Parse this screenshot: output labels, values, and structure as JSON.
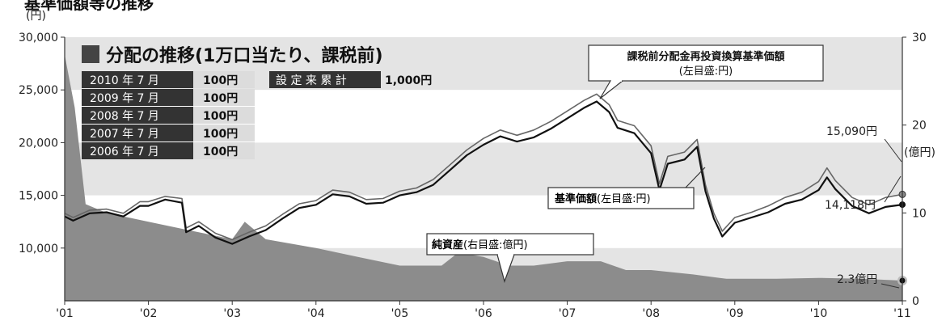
{
  "header": {
    "title": "基準価額等の推移"
  },
  "chart_data": {
    "type": "line",
    "title": "分配の推移(1万口当たり、課税前)",
    "left_axis": {
      "unit": "(円)",
      "ticks": [
        "30,000",
        "25,000",
        "20,000",
        "15,000",
        "10,000"
      ],
      "ylim": [
        5000,
        30000
      ]
    },
    "right_axis": {
      "unit": "(億円)",
      "ticks": [
        "30",
        "20",
        "10",
        "0"
      ],
      "ylim": [
        0,
        30
      ]
    },
    "x_axis": {
      "ticks": [
        "'01",
        "'02",
        "'03",
        "'04",
        "'05",
        "'06",
        "'07",
        "'08",
        "'09",
        "'10",
        "'11"
      ],
      "xlim": [
        2001.0,
        2011.0
      ]
    },
    "distributions": [
      {
        "period": "2010 年 7 月",
        "amount": "100円"
      },
      {
        "period": "2009 年 7 月",
        "amount": "100円"
      },
      {
        "period": "2008 年 7 月",
        "amount": "100円"
      },
      {
        "period": "2007 年 7 月",
        "amount": "100円"
      },
      {
        "period": "2006 年 7 月",
        "amount": "100円"
      }
    ],
    "cumulative": {
      "label": "設 定 来 累 計",
      "amount": "1,000円"
    },
    "series": [
      {
        "name": "課税前分配金再投資換算基準価額",
        "sub": "(左目盛:円)",
        "axis": "left",
        "color": "#666666",
        "points": [
          [
            2001.0,
            13300
          ],
          [
            2001.1,
            12900
          ],
          [
            2001.3,
            13600
          ],
          [
            2001.5,
            13700
          ],
          [
            2001.7,
            13300
          ],
          [
            2001.9,
            14400
          ],
          [
            2002.0,
            14400
          ],
          [
            2002.2,
            14900
          ],
          [
            2002.4,
            14700
          ],
          [
            2002.45,
            11900
          ],
          [
            2002.6,
            12500
          ],
          [
            2002.8,
            11400
          ],
          [
            2003.0,
            10800
          ],
          [
            2003.2,
            11500
          ],
          [
            2003.4,
            12100
          ],
          [
            2003.6,
            13200
          ],
          [
            2003.8,
            14200
          ],
          [
            2004.0,
            14500
          ],
          [
            2004.2,
            15500
          ],
          [
            2004.4,
            15300
          ],
          [
            2004.6,
            14600
          ],
          [
            2004.8,
            14700
          ],
          [
            2005.0,
            15400
          ],
          [
            2005.2,
            15700
          ],
          [
            2005.4,
            16500
          ],
          [
            2005.6,
            17900
          ],
          [
            2005.8,
            19300
          ],
          [
            2006.0,
            20400
          ],
          [
            2006.2,
            21200
          ],
          [
            2006.4,
            20700
          ],
          [
            2006.6,
            21200
          ],
          [
            2006.8,
            22000
          ],
          [
            2007.0,
            23000
          ],
          [
            2007.2,
            24000
          ],
          [
            2007.35,
            24600
          ],
          [
            2007.5,
            23600
          ],
          [
            2007.6,
            22100
          ],
          [
            2007.8,
            21600
          ],
          [
            2008.0,
            19700
          ],
          [
            2008.1,
            16100
          ],
          [
            2008.2,
            18700
          ],
          [
            2008.4,
            19100
          ],
          [
            2008.55,
            20300
          ],
          [
            2008.65,
            16000
          ],
          [
            2008.75,
            13300
          ],
          [
            2008.85,
            11600
          ],
          [
            2009.0,
            12900
          ],
          [
            2009.2,
            13400
          ],
          [
            2009.4,
            14000
          ],
          [
            2009.6,
            14800
          ],
          [
            2009.8,
            15300
          ],
          [
            2010.0,
            16300
          ],
          [
            2010.1,
            17600
          ],
          [
            2010.2,
            16400
          ],
          [
            2010.4,
            14800
          ],
          [
            2010.6,
            14100
          ],
          [
            2010.8,
            14800
          ],
          [
            2011.0,
            15090
          ]
        ]
      },
      {
        "name": "基準価額",
        "sub": "(左目盛:円)",
        "axis": "left",
        "color": "#111111",
        "points": [
          [
            2001.0,
            13000
          ],
          [
            2001.1,
            12600
          ],
          [
            2001.3,
            13300
          ],
          [
            2001.5,
            13400
          ],
          [
            2001.7,
            13000
          ],
          [
            2001.9,
            14000
          ],
          [
            2002.0,
            14000
          ],
          [
            2002.2,
            14600
          ],
          [
            2002.4,
            14300
          ],
          [
            2002.45,
            11500
          ],
          [
            2002.6,
            12100
          ],
          [
            2002.8,
            11000
          ],
          [
            2003.0,
            10400
          ],
          [
            2003.2,
            11100
          ],
          [
            2003.4,
            11700
          ],
          [
            2003.6,
            12800
          ],
          [
            2003.8,
            13800
          ],
          [
            2004.0,
            14100
          ],
          [
            2004.2,
            15100
          ],
          [
            2004.4,
            14900
          ],
          [
            2004.6,
            14200
          ],
          [
            2004.8,
            14300
          ],
          [
            2005.0,
            15000
          ],
          [
            2005.2,
            15300
          ],
          [
            2005.4,
            16000
          ],
          [
            2005.6,
            17400
          ],
          [
            2005.8,
            18800
          ],
          [
            2006.0,
            19800
          ],
          [
            2006.2,
            20600
          ],
          [
            2006.4,
            20100
          ],
          [
            2006.6,
            20500
          ],
          [
            2006.8,
            21300
          ],
          [
            2007.0,
            22300
          ],
          [
            2007.2,
            23300
          ],
          [
            2007.35,
            23900
          ],
          [
            2007.5,
            22900
          ],
          [
            2007.6,
            21400
          ],
          [
            2007.8,
            20900
          ],
          [
            2008.0,
            19000
          ],
          [
            2008.1,
            15500
          ],
          [
            2008.2,
            18000
          ],
          [
            2008.4,
            18400
          ],
          [
            2008.55,
            19600
          ],
          [
            2008.65,
            15400
          ],
          [
            2008.75,
            12800
          ],
          [
            2008.85,
            11100
          ],
          [
            2009.0,
            12400
          ],
          [
            2009.2,
            12900
          ],
          [
            2009.4,
            13400
          ],
          [
            2009.6,
            14200
          ],
          [
            2009.8,
            14600
          ],
          [
            2010.0,
            15500
          ],
          [
            2010.1,
            16700
          ],
          [
            2010.2,
            15600
          ],
          [
            2010.4,
            14000
          ],
          [
            2010.6,
            13300
          ],
          [
            2010.8,
            13900
          ],
          [
            2011.0,
            14118
          ]
        ]
      },
      {
        "name": "純資産",
        "sub": "(右目盛:億円)",
        "axis": "right",
        "color": "#8c8c8c",
        "points": [
          [
            2001.0,
            28
          ],
          [
            2001.12,
            22
          ],
          [
            2001.25,
            11
          ],
          [
            2001.5,
            10
          ],
          [
            2002.0,
            9
          ],
          [
            2002.5,
            8
          ],
          [
            2003.0,
            7
          ],
          [
            2003.15,
            9
          ],
          [
            2003.4,
            7
          ],
          [
            2004.0,
            6
          ],
          [
            2004.5,
            5
          ],
          [
            2005.0,
            4
          ],
          [
            2005.5,
            4
          ],
          [
            2005.7,
            5.5
          ],
          [
            2006.0,
            5
          ],
          [
            2006.3,
            4
          ],
          [
            2006.6,
            4
          ],
          [
            2007.0,
            4.5
          ],
          [
            2007.4,
            4.5
          ],
          [
            2007.7,
            3.5
          ],
          [
            2008.0,
            3.5
          ],
          [
            2008.5,
            3
          ],
          [
            2008.9,
            2.5
          ],
          [
            2009.5,
            2.5
          ],
          [
            2010.0,
            2.6
          ],
          [
            2010.5,
            2.5
          ],
          [
            2011.0,
            2.3
          ]
        ]
      }
    ],
    "annotations": {
      "end_adjusted": "15,090円",
      "end_nav": "14,118円",
      "end_assets": "2.3億円"
    },
    "grid": "bands"
  }
}
